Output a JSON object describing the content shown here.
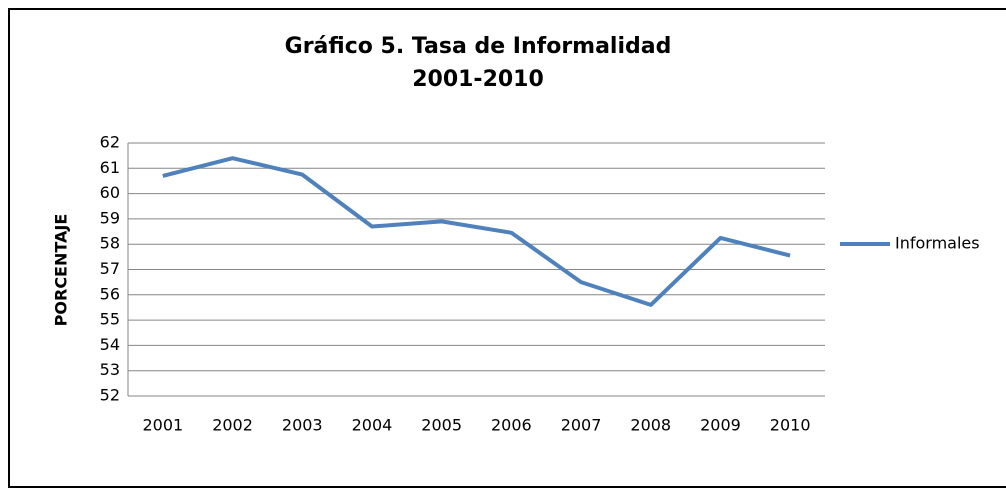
{
  "chart_data": {
    "type": "line",
    "title": "Gráfico 5. Tasa de Informalidad",
    "subtitle": "2001-2010",
    "y_label": "PORCENTAJE",
    "categories": [
      "2001",
      "2002",
      "2003",
      "2004",
      "2005",
      "2006",
      "2007",
      "2008",
      "2009",
      "2010"
    ],
    "series": [
      {
        "name": "Informales",
        "color": "#4f81bd",
        "values": [
          60.7,
          61.4,
          60.75,
          58.7,
          58.9,
          58.45,
          56.5,
          55.6,
          58.25,
          57.55
        ]
      }
    ],
    "ylim": [
      52,
      62
    ],
    "yticks": [
      52,
      53,
      54,
      55,
      56,
      57,
      58,
      59,
      60,
      61,
      62
    ],
    "grid": true,
    "legend": "right"
  }
}
